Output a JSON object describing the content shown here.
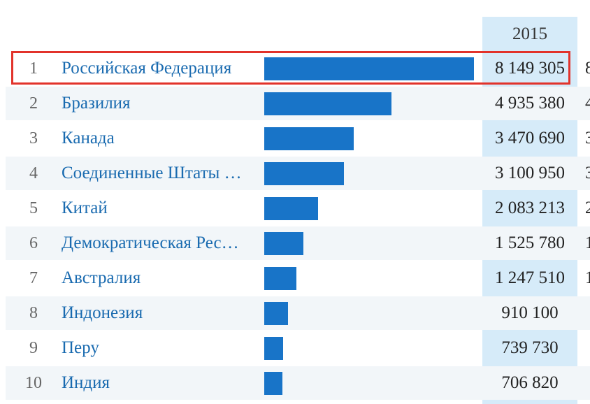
{
  "chart_data": {
    "type": "bar",
    "orientation": "horizontal",
    "column_header": "2015",
    "ranks": [
      "1",
      "2",
      "3",
      "4",
      "5",
      "6",
      "7",
      "8",
      "9",
      "10"
    ],
    "categories": [
      "Российская Федерация",
      "Бразилия",
      "Канада",
      "Соединенные Штаты …",
      "Китай",
      "Демократическая Рес…",
      "Австралия",
      "Индонезия",
      "Перу",
      "Индия"
    ],
    "values": [
      8149305,
      4935380,
      3470690,
      3100950,
      2083213,
      1525780,
      1247510,
      910100,
      739730,
      706820
    ],
    "value_labels": [
      "8 149 305",
      "4 935 380",
      "3 470 690",
      "3 100 950",
      "2 083 213",
      "1 525 780",
      "1 247 510",
      "910 100",
      "739 730",
      "706 820"
    ],
    "next_column_fragments": [
      "8",
      "4",
      "3",
      "3",
      "2",
      "1",
      "1",
      "",
      "",
      ""
    ],
    "highlighted_rank": "1",
    "bar_color": "#1874c8",
    "highlight_color": "#e2332b",
    "header_bg_color": "#d6ebf9",
    "name_color": "#1a6bb0"
  }
}
